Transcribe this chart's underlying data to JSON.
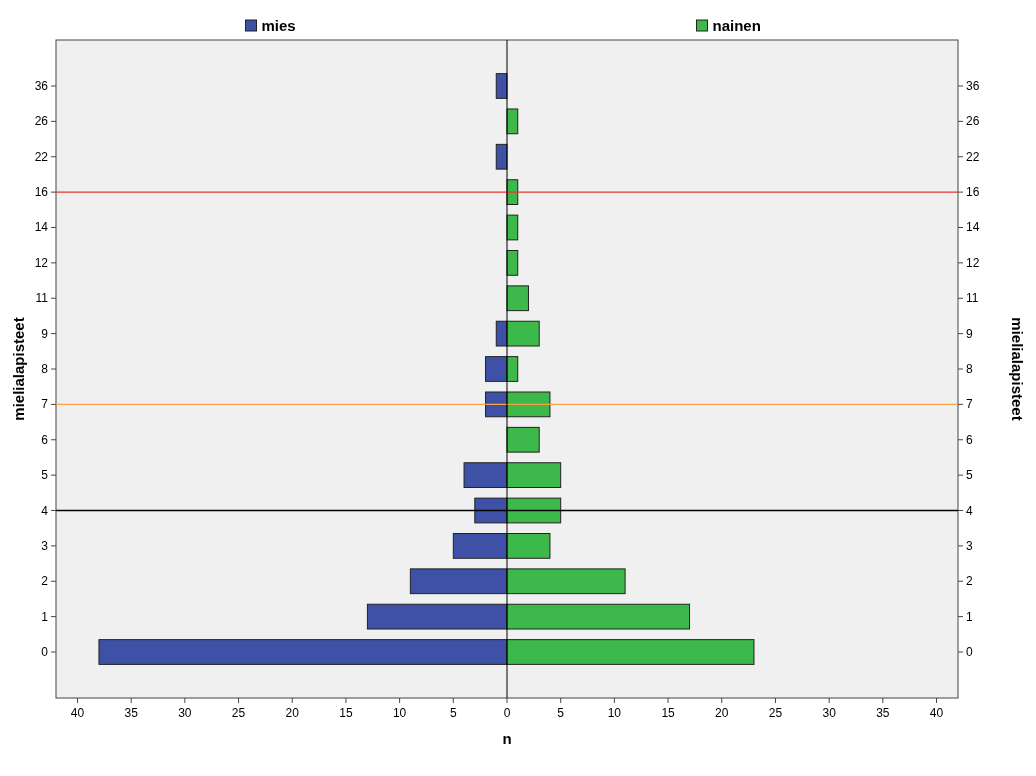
{
  "chart_data": {
    "type": "bar",
    "orientation": "horizontal",
    "xlabel": "n",
    "ylabel": "mielialapisteet",
    "y2label": "mielialapisteet",
    "categories": [
      "36",
      "26",
      "22",
      "16",
      "14",
      "12",
      "11",
      "9",
      "8",
      "7",
      "6",
      "5",
      "4",
      "3",
      "2",
      "1",
      "0"
    ],
    "y2_categories": [
      "36",
      "26",
      "22",
      "16",
      "14",
      "12",
      "11",
      "9",
      "8",
      "7",
      "6",
      "5",
      "4",
      "3",
      "2",
      "1",
      "0"
    ],
    "series": [
      {
        "name": "mies",
        "color": "#3f51a6",
        "values": [
          -1,
          null,
          -1,
          null,
          null,
          null,
          null,
          -1,
          -2,
          -2,
          null,
          -4,
          -3,
          -5,
          -9,
          -13,
          -38
        ]
      },
      {
        "name": "nainen",
        "color": "#3cb94a",
        "values": [
          null,
          1,
          null,
          1,
          1,
          1,
          2,
          3,
          1,
          4,
          3,
          5,
          5,
          4,
          11,
          17,
          23
        ]
      }
    ],
    "xlim": [
      -42,
      42
    ],
    "xticks": [
      {
        "value": -40,
        "label": "40"
      },
      {
        "value": -35,
        "label": "35"
      },
      {
        "value": -30,
        "label": "30"
      },
      {
        "value": -25,
        "label": "25"
      },
      {
        "value": -20,
        "label": "20"
      },
      {
        "value": -15,
        "label": "15"
      },
      {
        "value": -10,
        "label": "10"
      },
      {
        "value": -5,
        "label": "5"
      },
      0,
      5,
      10,
      15,
      20,
      25,
      30,
      35,
      40
    ],
    "ref_lines": [
      {
        "axis": "y",
        "value": "16",
        "color": "#e8342c"
      },
      {
        "axis": "y",
        "value": "7",
        "color": "#f5a243"
      },
      {
        "axis": "y",
        "value": "4",
        "color": "#000000"
      }
    ],
    "stacked": true,
    "legend": "top"
  }
}
